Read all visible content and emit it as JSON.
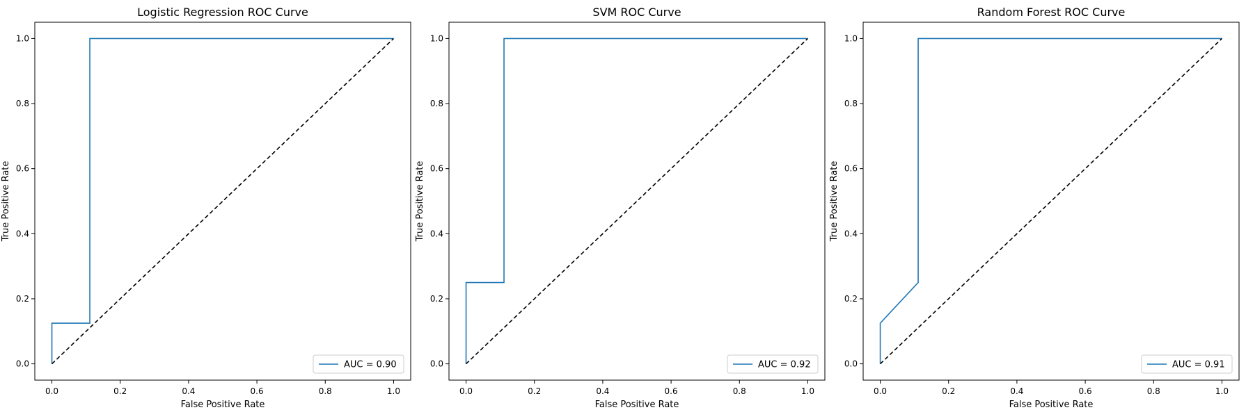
{
  "colors": {
    "roc_line": "#1f77b4",
    "diagonal": "#000000",
    "frame": "#000000",
    "legend_border": "#cccccc"
  },
  "chart_data": [
    {
      "type": "line",
      "title": "Logistic Regression ROC Curve",
      "xlabel": "False Positive Rate",
      "ylabel": "True Positive Rate",
      "xlim": [
        -0.05,
        1.05
      ],
      "ylim": [
        -0.05,
        1.05
      ],
      "xticks": [
        0.0,
        0.2,
        0.4,
        0.6,
        0.8,
        1.0
      ],
      "yticks": [
        0.0,
        0.2,
        0.4,
        0.6,
        0.8,
        1.0
      ],
      "legend_position": "lower-right",
      "grid": false,
      "series": [
        {
          "name": "AUC = 0.90",
          "style": "solid",
          "x": [
            0.0,
            0.0,
            0.111,
            0.111,
            1.0
          ],
          "y": [
            0.0,
            0.125,
            0.125,
            1.0,
            1.0
          ]
        },
        {
          "style": "dashed",
          "x": [
            0.0,
            1.0
          ],
          "y": [
            0.0,
            1.0
          ]
        }
      ]
    },
    {
      "type": "line",
      "title": "SVM ROC Curve",
      "xlabel": "False Positive Rate",
      "ylabel": "True Positive Rate",
      "xlim": [
        -0.05,
        1.05
      ],
      "ylim": [
        -0.05,
        1.05
      ],
      "xticks": [
        0.0,
        0.2,
        0.4,
        0.6,
        0.8,
        1.0
      ],
      "yticks": [
        0.0,
        0.2,
        0.4,
        0.6,
        0.8,
        1.0
      ],
      "legend_position": "lower-right",
      "grid": false,
      "series": [
        {
          "name": "AUC = 0.92",
          "style": "solid",
          "x": [
            0.0,
            0.0,
            0.111,
            0.111,
            1.0
          ],
          "y": [
            0.0,
            0.25,
            0.25,
            1.0,
            1.0
          ]
        },
        {
          "style": "dashed",
          "x": [
            0.0,
            1.0
          ],
          "y": [
            0.0,
            1.0
          ]
        }
      ]
    },
    {
      "type": "line",
      "title": "Random Forest ROC Curve",
      "xlabel": "False Positive Rate",
      "ylabel": "True Positive Rate",
      "xlim": [
        -0.05,
        1.05
      ],
      "ylim": [
        -0.05,
        1.05
      ],
      "xticks": [
        0.0,
        0.2,
        0.4,
        0.6,
        0.8,
        1.0
      ],
      "yticks": [
        0.0,
        0.2,
        0.4,
        0.6,
        0.8,
        1.0
      ],
      "legend_position": "lower-right",
      "grid": false,
      "series": [
        {
          "name": "AUC = 0.91",
          "style": "solid",
          "x": [
            0.0,
            0.0,
            0.111,
            0.111,
            1.0
          ],
          "y": [
            0.0,
            0.125,
            0.25,
            1.0,
            1.0
          ]
        },
        {
          "style": "dashed",
          "x": [
            0.0,
            1.0
          ],
          "y": [
            0.0,
            1.0
          ]
        }
      ]
    }
  ]
}
